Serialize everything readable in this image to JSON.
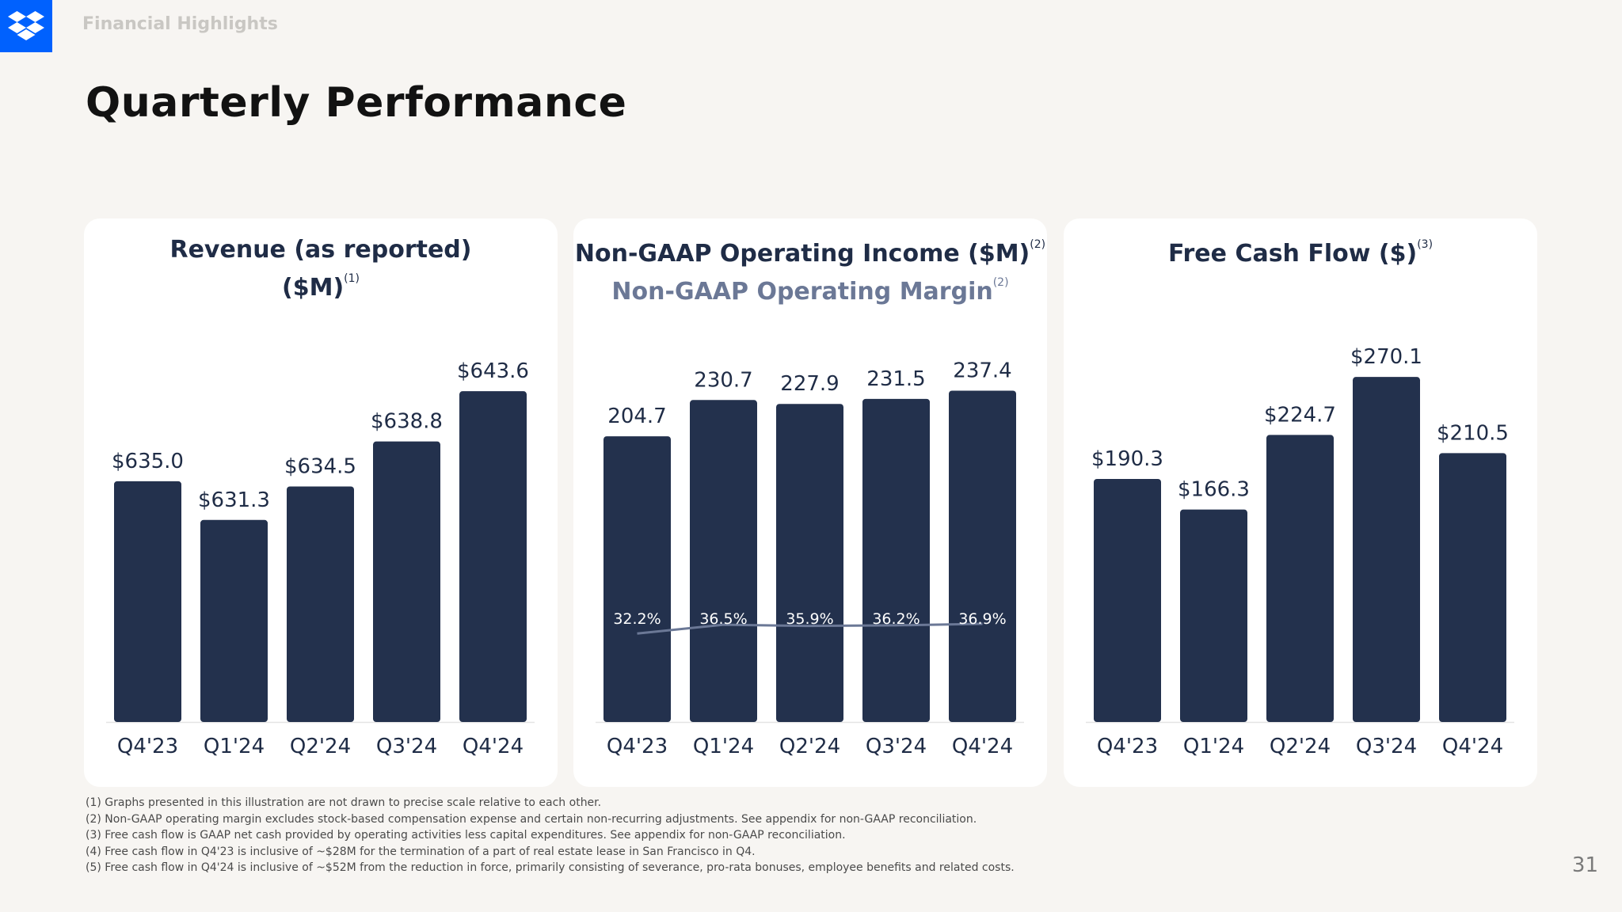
{
  "header": {
    "section_label": "Financial Highlights",
    "page_title": "Quarterly Performance"
  },
  "page_number": "31",
  "colors": {
    "bar": "#23314d",
    "line": "#6b7896",
    "brand": "#0061fe"
  },
  "logo_icon": "dropbox-logo-icon",
  "cards": [
    {
      "title": "Revenue (as reported)",
      "title_line2": "($M)",
      "title_sup": "(1)"
    },
    {
      "title": "Non-GAAP Operating Income ($M)",
      "title_sup": "(2)",
      "subtitle": "Non-GAAP Operating Margin",
      "subtitle_sup": "(2)"
    },
    {
      "title": "Free Cash Flow ($)",
      "title_sup": "(3)"
    }
  ],
  "chart_data": [
    {
      "type": "bar",
      "title": "Revenue (as reported) ($M)",
      "categories": [
        "Q4'23",
        "Q1'24",
        "Q2'24",
        "Q3'24",
        "Q4'24"
      ],
      "values": [
        635.0,
        631.3,
        634.5,
        638.8,
        643.6
      ],
      "value_labels": [
        "$635.0",
        "$631.3",
        "$634.5",
        "$638.8",
        "$643.6"
      ],
      "ylim": [
        612,
        648
      ]
    },
    {
      "type": "bar",
      "title": "Non-GAAP Operating Income ($M)",
      "subtitle": "Non-GAAP Operating Margin",
      "categories": [
        "Q4'23",
        "Q1'24",
        "Q2'24",
        "Q3'24",
        "Q4'24"
      ],
      "values": [
        204.7,
        230.7,
        227.9,
        231.5,
        237.4
      ],
      "value_labels": [
        "204.7",
        "230.7",
        "227.9",
        "231.5",
        "237.4"
      ],
      "ylim": [
        0,
        270
      ],
      "line_series": {
        "values": [
          32.2,
          36.5,
          35.9,
          36.2,
          36.9
        ],
        "value_labels": [
          "32.2%",
          "36.5%",
          "35.9%",
          "36.2%",
          "36.9%"
        ]
      }
    },
    {
      "type": "bar",
      "title": "Free Cash Flow ($)",
      "categories": [
        "Q4'23",
        "Q1'24",
        "Q2'24",
        "Q3'24",
        "Q4'24"
      ],
      "values": [
        190.3,
        166.3,
        224.7,
        270.1,
        210.5
      ],
      "value_labels": [
        "$190.3",
        "$166.3",
        "$224.7",
        "$270.1",
        "$210.5"
      ],
      "ylim": [
        0,
        295
      ]
    }
  ],
  "footnotes": [
    "(1) Graphs presented in this illustration are not drawn to precise scale relative to each other.",
    "(2) Non-GAAP operating margin excludes stock-based compensation expense and certain non-recurring adjustments. See appendix for non-GAAP reconciliation.",
    "(3) Free cash flow is GAAP net cash provided by operating activities less capital expenditures. See appendix for non-GAAP reconciliation.",
    "(4) Free cash flow in Q4'23 is inclusive of ~$28M for the termination of a part of real estate lease in San Francisco in Q4.",
    "(5) Free cash flow in Q4'24 is inclusive of ~$52M from the reduction in force, primarily consisting of severance, pro-rata bonuses, employee benefits and related costs."
  ]
}
